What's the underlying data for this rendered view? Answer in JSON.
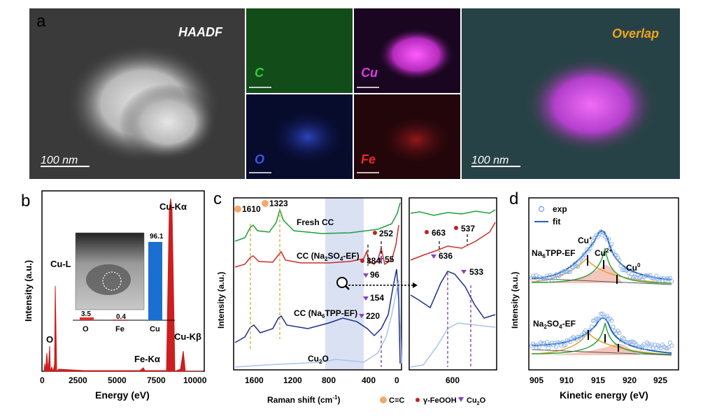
{
  "panels": {
    "a": {
      "label": "a",
      "haadf_title": "HAADF",
      "haadf_scale": "100 nm",
      "maps": [
        {
          "name": "C",
          "color": "#2fd13a",
          "bg": "#0b3410"
        },
        {
          "name": "Cu",
          "color": "#e23ae8",
          "bg": "#1a0620"
        },
        {
          "name": "O",
          "color": "#3a55e8",
          "bg": "#070b2c"
        },
        {
          "name": "Fe",
          "color": "#e82a2a",
          "bg": "#22060a"
        }
      ],
      "overlap_title": "Overlap",
      "overlap_scale": "100 nm"
    },
    "b": {
      "label": "b",
      "peaks": [
        "O",
        "Cu-L",
        "Cu-Kα",
        "Fe-Kα",
        "Cu-Kβ"
      ],
      "ylabel": "Intensity (a.u.)",
      "xlabel": "Energy (eV)",
      "xticks": [
        "0",
        "2500",
        "5000",
        "7500",
        "10000"
      ],
      "inset": {
        "categories": [
          "O",
          "Fe",
          "Cu"
        ],
        "values": [
          3.5,
          0.4,
          96.1
        ],
        "value_labels": [
          "3.5",
          "0.4",
          "96.1"
        ],
        "colors": [
          "#e03030",
          "#e03030",
          "#1a6fd1"
        ]
      }
    },
    "c": {
      "label": "c",
      "ylabel": "Intensity (a.u.)",
      "xlabel": "Raman shift (cm",
      "xlabel_sup": "-1",
      "xlabel_end": ")",
      "xticks": [
        "1600",
        "1200",
        "800",
        "400",
        "0"
      ],
      "xticks_zoom": [
        "600"
      ],
      "curves": [
        {
          "label": "Fresh CC",
          "color": "#1f9e3a"
        },
        {
          "label": "CC (Na",
          "sub1": "2",
          "mid": "SO",
          "sub2": "4",
          "end": "-EF)",
          "color": "#d12a2a"
        },
        {
          "label": "CC (Na",
          "sub1": "6",
          "mid": "TPP-EF)",
          "color": "#1c2f8a"
        },
        {
          "label": "Cu",
          "sub1": "2",
          "mid": "O",
          "color": "#a9c2ee"
        }
      ],
      "peak_labels": [
        "1610",
        "1323",
        "384",
        "252",
        "55",
        "96",
        "154",
        "220",
        "663",
        "537",
        "636",
        "533"
      ],
      "legend": [
        "C=C",
        "γ-FeOOH",
        "Cu",
        "O"
      ],
      "legend_sub": "2"
    },
    "d": {
      "label": "d",
      "legend": [
        "exp",
        "fit"
      ],
      "ylabel": "Intensity (a.u.)",
      "xlabel": "Kinetic energy (eV)",
      "xticks": [
        "905",
        "910",
        "915",
        "920",
        "925"
      ],
      "top_label": "Na",
      "top_sub": "6",
      "top_end": "TPP-EF",
      "bottom_label": "Na",
      "bottom_sub1": "2",
      "bottom_mid": "SO",
      "bottom_sub2": "4",
      "bottom_end": "-EF",
      "species": [
        "Cu",
        "Cu",
        "Cu"
      ],
      "species_sup": [
        "+",
        "2+",
        "0"
      ]
    }
  }
}
